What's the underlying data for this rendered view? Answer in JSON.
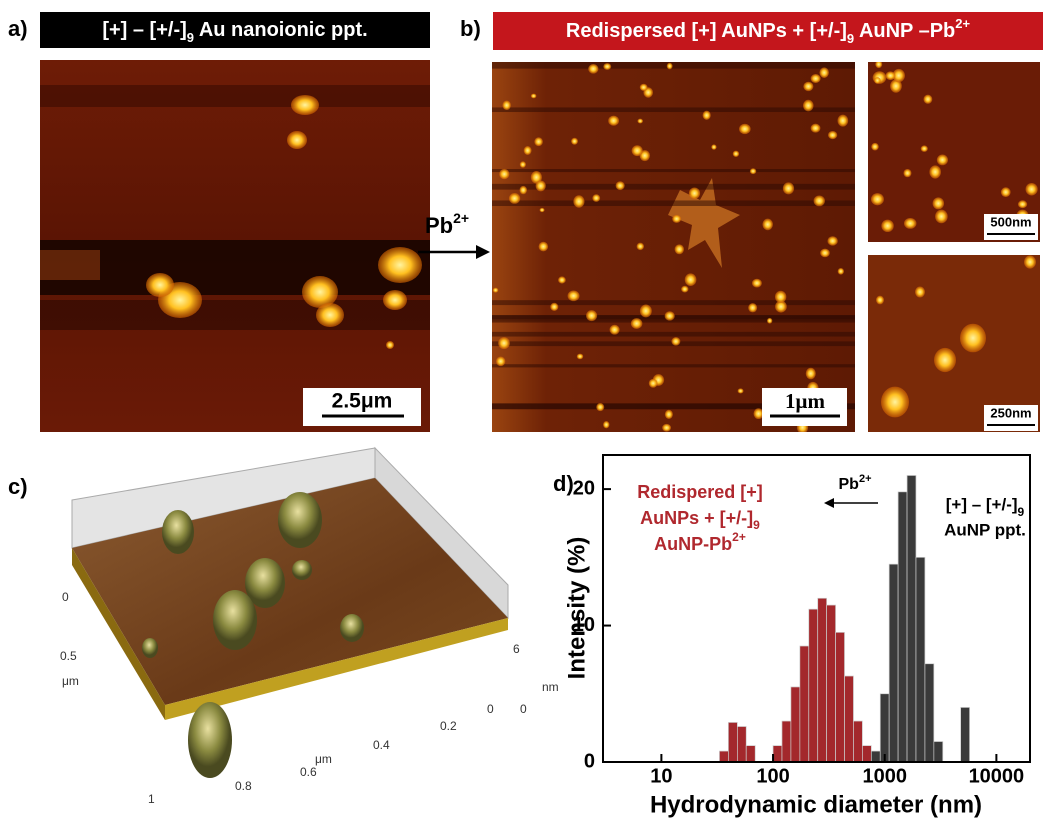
{
  "panel_a": {
    "label": "a)",
    "title": "[+] – [+/-]",
    "title_sub": "9",
    "title_end": " Au nanoionic ppt.",
    "scale_bar": "2.5μm"
  },
  "arrow_label": {
    "text": "Pb",
    "sup": "2+"
  },
  "panel_b": {
    "label": "b)",
    "title": "Redispersed [+] AuNPs + [+/-]",
    "title_sub": "9",
    "title_mid": " AuNP –Pb",
    "title_sup": "2+",
    "scale_bars": [
      "1μm",
      "500nm",
      "250nm"
    ]
  },
  "panel_c": {
    "label": "c)",
    "y_ticks": [
      "0",
      "0.5",
      "1"
    ],
    "y_unit": "μm",
    "x_ticks": [
      "0.8",
      "0.6",
      "0.4",
      "0.2",
      "0"
    ],
    "x_unit": "μm",
    "z_ticks": [
      "6",
      "0"
    ],
    "z_unit": "nm"
  },
  "chart_data": {
    "type": "histogram",
    "label": "d)",
    "xlabel": "Hydrodynamic diameter (nm)",
    "ylabel": "Intensity (%)",
    "xscale": "log",
    "xlim": [
      3,
      20000
    ],
    "xticks": [
      10,
      100,
      1000,
      10000
    ],
    "ylim": [
      0,
      22.5
    ],
    "yticks": [
      0,
      10,
      20
    ],
    "series": [
      {
        "color": "#a3282c",
        "bins": [
          33.1,
          39.8,
          47.9,
          57.5,
          69.2,
          83.2,
          100,
          120.2,
          144.5,
          173.8,
          208.9,
          251.2,
          302,
          363.1,
          436.5,
          524.8,
          631,
          758.6
        ],
        "values": [
          0.8,
          2.9,
          2.6,
          1.2,
          0,
          0,
          1.2,
          3,
          5.5,
          8.5,
          11.2,
          12,
          11.5,
          9.5,
          6.3,
          3,
          1.2
        ]
      },
      {
        "color": "#3a3a3a",
        "bins": [
          758.6,
          912,
          1096,
          1318,
          1585,
          1905,
          2291,
          2754,
          3311,
          3981,
          4786,
          5754
        ],
        "values": [
          0.8,
          5,
          14.5,
          19.8,
          21,
          15,
          7.2,
          1.5,
          0,
          0,
          4
        ]
      }
    ],
    "annotations": {
      "red_line1": "Redispered [+]",
      "red_line2": "AuNPs + [+/-]",
      "red_line2_sub": "9",
      "red_line3": "AuNP-Pb",
      "red_line3_sup": "2+",
      "arrow": "Pb",
      "arrow_sup": "2+",
      "black_line1": "[+] – [+/-]",
      "black_line1_sub": "9",
      "black_line2": "AuNP ppt."
    }
  }
}
